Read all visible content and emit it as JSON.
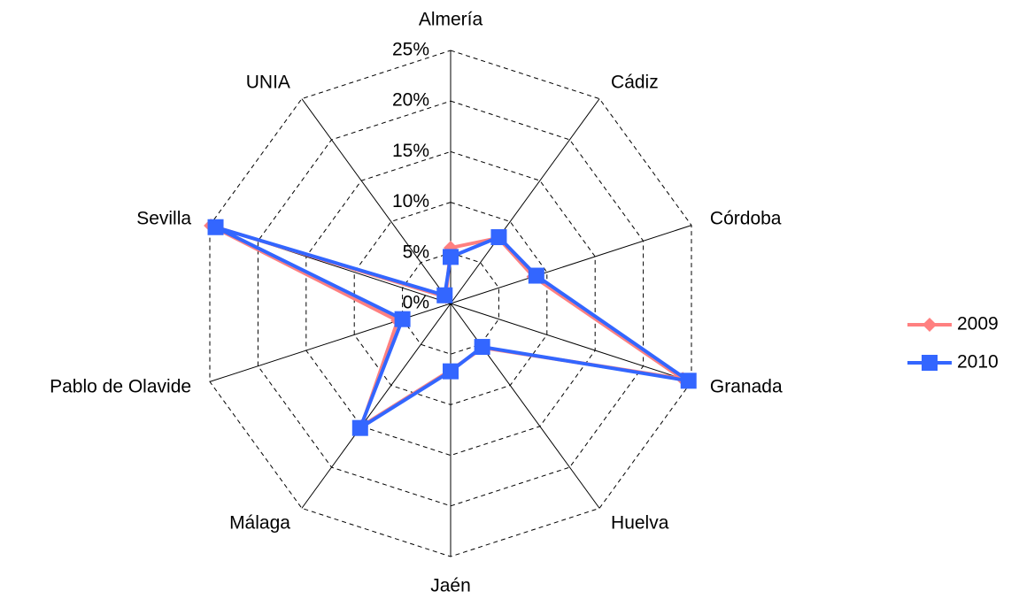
{
  "chart_data": {
    "type": "radar",
    "categories": [
      "Almería",
      "Cádiz",
      "Córdoba",
      "Granada",
      "Huelva",
      "Jaén",
      "Málaga",
      "Pablo de Olavide",
      "Sevilla",
      "UNIA"
    ],
    "series": [
      {
        "name": "2009",
        "color": "#ff8080",
        "marker": "diamond",
        "values": [
          5.5,
          8.0,
          8.6,
          24.1,
          5.4,
          6.6,
          15.0,
          5.5,
          24.9,
          0.8
        ]
      },
      {
        "name": "2010",
        "color": "#3366ff",
        "marker": "square",
        "values": [
          4.6,
          8.1,
          8.9,
          24.7,
          5.3,
          6.7,
          15.2,
          5.0,
          24.4,
          1.0
        ]
      }
    ],
    "ylim": [
      0,
      25
    ],
    "yticks": [
      {
        "value": 0,
        "label": "0%"
      },
      {
        "value": 5,
        "label": "5%"
      },
      {
        "value": 10,
        "label": "10%"
      },
      {
        "value": 15,
        "label": "15%"
      },
      {
        "value": 20,
        "label": "20%"
      },
      {
        "value": 25,
        "label": "25%"
      }
    ],
    "grid": true,
    "legend": "right"
  }
}
